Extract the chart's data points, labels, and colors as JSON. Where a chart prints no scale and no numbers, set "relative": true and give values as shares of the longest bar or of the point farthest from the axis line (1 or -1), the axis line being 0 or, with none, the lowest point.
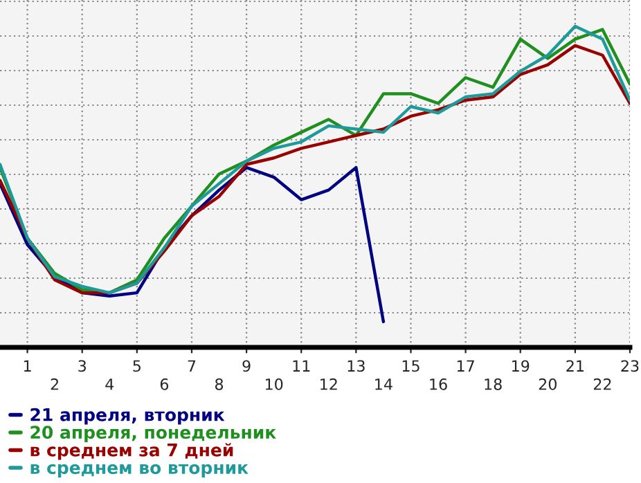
{
  "chart_data": {
    "type": "line",
    "relative": true,
    "x": [
      0,
      1,
      2,
      3,
      4,
      5,
      6,
      7,
      8,
      9,
      10,
      11,
      12,
      13,
      14,
      15,
      16,
      17,
      18,
      19,
      20,
      21,
      22,
      23
    ],
    "xlim": [
      0,
      23
    ],
    "xticks": [
      1,
      3,
      5,
      7,
      9,
      11,
      13,
      15,
      17,
      19,
      21,
      23
    ],
    "x2lim": [
      0,
      23
    ],
    "x2ticks": [
      2,
      4,
      6,
      8,
      10,
      12,
      14,
      16,
      18,
      20,
      22
    ],
    "grid": true,
    "legend": "bottom left",
    "marker": "none",
    "line_style": "solid",
    "series": [
      {
        "name": "21 апреля, вторник",
        "color": "#000080",
        "x": [
          0,
          1,
          2,
          3,
          4,
          5,
          6,
          7,
          8,
          9,
          10,
          11,
          12,
          13,
          14
        ],
        "values": [
          0.51,
          0.32,
          0.22,
          0.17,
          0.16,
          0.17,
          0.31,
          0.41,
          0.49,
          0.56,
          0.53,
          0.46,
          0.49,
          0.56,
          0.08
        ]
      },
      {
        "name": "20 апреля, понедельник",
        "color": "#1f8f1f",
        "values": [
          0.56,
          0.34,
          0.23,
          0.18,
          0.17,
          0.21,
          0.34,
          0.44,
          0.54,
          0.58,
          0.63,
          0.67,
          0.71,
          0.66,
          0.79,
          0.79,
          0.76,
          0.84,
          0.81,
          0.96,
          0.9,
          0.96,
          0.99,
          0.82
        ]
      },
      {
        "name": "в среднем за 7 дней",
        "color": "#990000",
        "values": [
          0.52,
          0.34,
          0.21,
          0.17,
          0.17,
          0.2,
          0.3,
          0.41,
          0.47,
          0.57,
          0.59,
          0.62,
          0.64,
          0.66,
          0.68,
          0.72,
          0.74,
          0.77,
          0.78,
          0.85,
          0.88,
          0.94,
          0.91,
          0.76
        ]
      },
      {
        "name": "в среднем во вторник",
        "color": "#1f9a9a",
        "values": [
          0.57,
          0.34,
          0.22,
          0.19,
          0.17,
          0.2,
          0.31,
          0.44,
          0.51,
          0.58,
          0.62,
          0.64,
          0.69,
          0.68,
          0.67,
          0.75,
          0.73,
          0.78,
          0.79,
          0.86,
          0.91,
          1.0,
          0.96,
          0.77
        ]
      }
    ]
  }
}
